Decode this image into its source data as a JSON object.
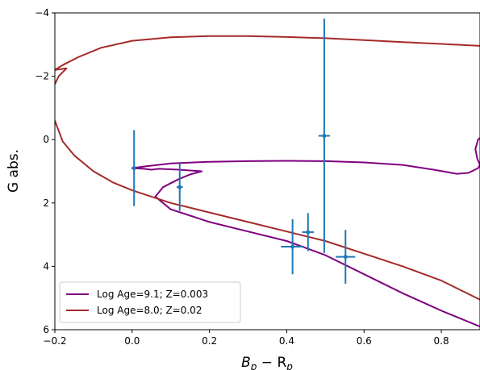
{
  "chart_data": {
    "type": "line",
    "xlabel_main": "B",
    "xlabel_sub1": "p",
    "xlabel_mid": " − R",
    "xlabel_sub2": "p",
    "ylabel": "G abs.",
    "xlim": [
      -0.2,
      0.9
    ],
    "ylim": [
      6,
      -4
    ],
    "y_inverted": true,
    "xticks": [
      -0.2,
      0.0,
      0.2,
      0.4,
      0.6,
      0.8
    ],
    "xtick_labels": [
      "−0.2",
      "0.0",
      "0.2",
      "0.4",
      "0.6",
      "0.8"
    ],
    "yticks": [
      -4,
      -2,
      0,
      2,
      4,
      6
    ],
    "ytick_labels": [
      "−4",
      "−2",
      "0",
      "2",
      "4",
      "6"
    ],
    "grid": false,
    "legend_position": "lower-left",
    "series": [
      {
        "name": "Log Age=9.1; Z=0.003",
        "color": "#800080",
        "points": [
          [
            0.9,
            5.9
          ],
          [
            0.8,
            5.4
          ],
          [
            0.7,
            4.85
          ],
          [
            0.6,
            4.25
          ],
          [
            0.5,
            3.65
          ],
          [
            0.4,
            3.2
          ],
          [
            0.3,
            2.9
          ],
          [
            0.2,
            2.6
          ],
          [
            0.15,
            2.4
          ],
          [
            0.1,
            2.2
          ],
          [
            0.08,
            2.0
          ],
          [
            0.06,
            1.8
          ],
          [
            0.08,
            1.5
          ],
          [
            0.12,
            1.25
          ],
          [
            0.15,
            1.1
          ],
          [
            0.18,
            1.0
          ],
          [
            0.12,
            0.95
          ],
          [
            0.07,
            0.92
          ],
          [
            0.05,
            0.95
          ],
          [
            0.03,
            0.92
          ],
          [
            0.0,
            0.9
          ],
          [
            0.03,
            0.85
          ],
          [
            0.1,
            0.75
          ],
          [
            0.2,
            0.7
          ],
          [
            0.3,
            0.68
          ],
          [
            0.4,
            0.67
          ],
          [
            0.5,
            0.68
          ],
          [
            0.6,
            0.72
          ],
          [
            0.7,
            0.8
          ],
          [
            0.78,
            0.95
          ],
          [
            0.84,
            1.08
          ],
          [
            0.87,
            1.05
          ],
          [
            0.895,
            0.9
          ],
          [
            0.9,
            0.8
          ],
          [
            0.893,
            0.6
          ],
          [
            0.888,
            0.3
          ],
          [
            0.895,
            0.0
          ],
          [
            0.9,
            -0.05
          ]
        ]
      },
      {
        "name": "Log Age=8.0; Z=0.02",
        "color": "#a52a2a",
        "points": [
          [
            0.9,
            5.05
          ],
          [
            0.8,
            4.45
          ],
          [
            0.7,
            4.0
          ],
          [
            0.6,
            3.6
          ],
          [
            0.5,
            3.2
          ],
          [
            0.4,
            2.9
          ],
          [
            0.3,
            2.6
          ],
          [
            0.2,
            2.3
          ],
          [
            0.1,
            2.0
          ],
          [
            0.0,
            1.6
          ],
          [
            -0.05,
            1.35
          ],
          [
            -0.1,
            1.0
          ],
          [
            -0.15,
            0.5
          ],
          [
            -0.18,
            0.05
          ],
          [
            -0.2,
            -0.6
          ],
          null,
          [
            -0.2,
            -1.75
          ],
          [
            -0.19,
            -2.0
          ],
          [
            -0.17,
            -2.25
          ],
          [
            -0.2,
            -2.2
          ],
          [
            -0.18,
            -2.35
          ],
          [
            -0.14,
            -2.6
          ],
          [
            -0.08,
            -2.9
          ],
          [
            0.0,
            -3.12
          ],
          [
            0.1,
            -3.23
          ],
          [
            0.2,
            -3.27
          ],
          [
            0.3,
            -3.27
          ],
          [
            0.4,
            -3.24
          ],
          [
            0.5,
            -3.2
          ],
          [
            0.6,
            -3.14
          ],
          [
            0.7,
            -3.08
          ],
          [
            0.8,
            -3.02
          ],
          [
            0.9,
            -2.96
          ]
        ]
      }
    ],
    "errorbars": {
      "color": "#1f77b4",
      "points": [
        {
          "x": 0.005,
          "y": 0.9,
          "xerr": 0.0,
          "yerr": 1.2
        },
        {
          "x": 0.123,
          "y": 1.5,
          "xerr": 0.008,
          "yerr": 0.75
        },
        {
          "x": 0.415,
          "y": 3.38,
          "xerr": 0.03,
          "yerr": 0.87
        },
        {
          "x": 0.455,
          "y": 2.92,
          "xerr": 0.015,
          "yerr": 0.6
        },
        {
          "x": 0.497,
          "y": -0.12,
          "xerr": 0.015,
          "yerr": 3.7
        },
        {
          "x": 0.552,
          "y": 3.7,
          "xerr": 0.025,
          "yerr": 0.85
        }
      ]
    }
  }
}
